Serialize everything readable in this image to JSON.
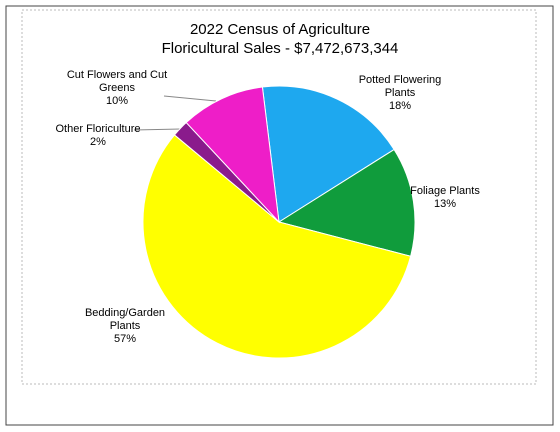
{
  "chart_data": {
    "type": "pie",
    "title": "2022 Census of Agriculture",
    "subtitle": "Floricultural Sales - $7,472,673,344",
    "categories": [
      "Potted Flowering Plants",
      "Foliage Plants",
      "Bedding/Garden Plants",
      "Other Floriculture",
      "Cut Flowers and Cut Greens"
    ],
    "values": [
      18,
      13,
      57,
      2,
      10
    ],
    "value_labels": [
      "18%",
      "13%",
      "57%",
      "2%",
      "10%"
    ],
    "colors": [
      "#1ea8ef",
      "#109c3c",
      "#ffff00",
      "#8a1b8c",
      "#ee1ec8"
    ]
  }
}
